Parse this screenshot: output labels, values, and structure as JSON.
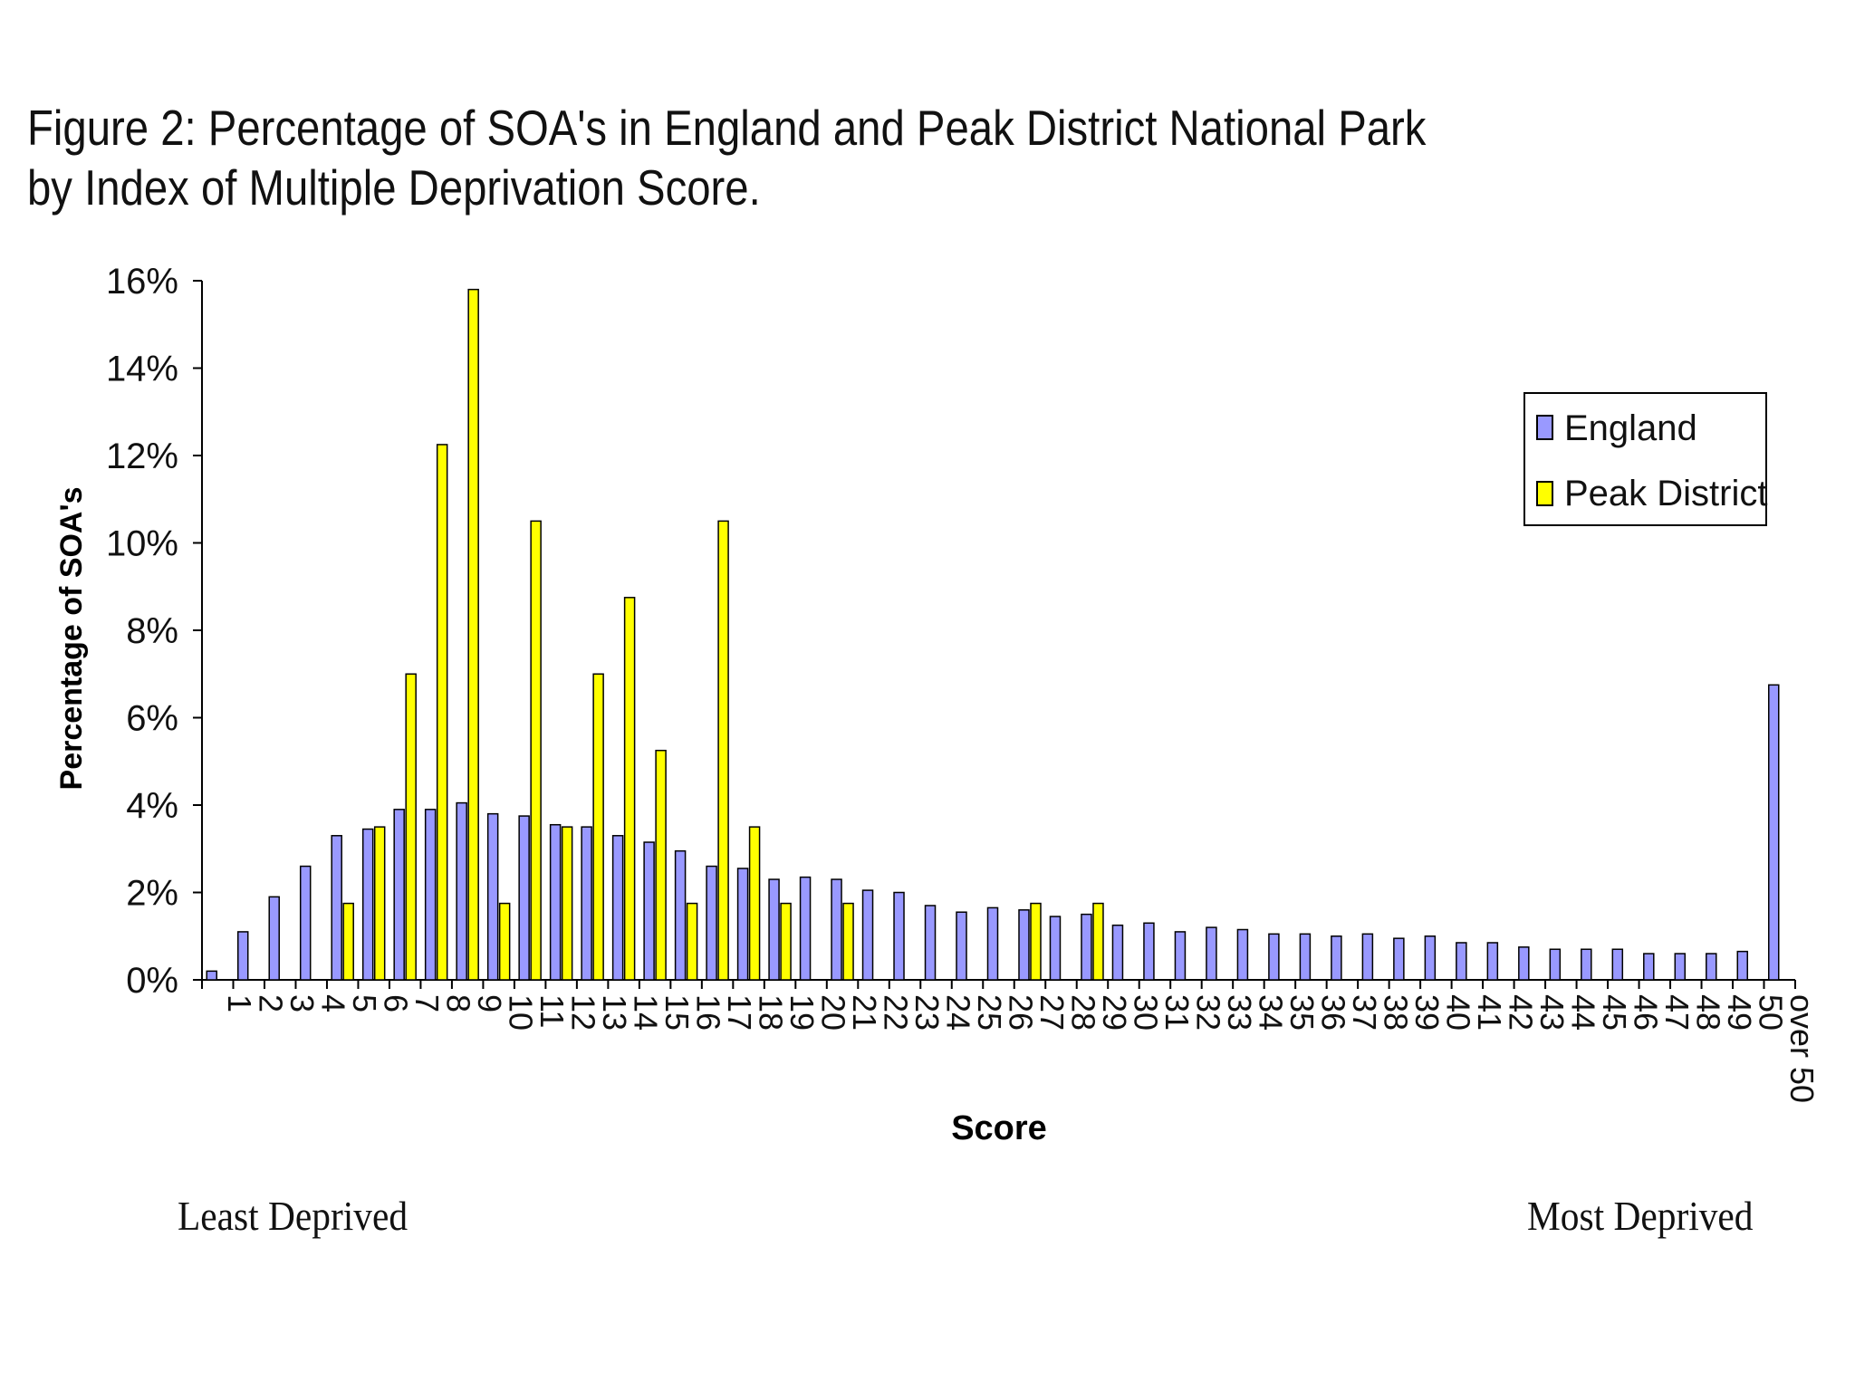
{
  "page": {
    "title": "Figure 2: Percentage of SOA's in England and Peak District National Park by Index of Multiple Deprivation Score.",
    "least_label": "Least Deprived",
    "most_label": "Most Deprived"
  },
  "colors": {
    "england": "#9999ff",
    "peak": "#ffff00"
  },
  "chart_data": {
    "type": "bar",
    "title": "Figure 2: Percentage of SOA's in England and Peak District National Park by Index of Multiple Deprivation Score.",
    "xlabel": "Score",
    "ylabel": "Percentage of SOA's",
    "ylim": [
      0,
      16
    ],
    "yticks": [
      "0%",
      "2%",
      "4%",
      "6%",
      "8%",
      "10%",
      "12%",
      "14%",
      "16%"
    ],
    "legend_position": "top-right",
    "categories": [
      "1",
      "2",
      "3",
      "4",
      "5",
      "6",
      "7",
      "8",
      "9",
      "10",
      "11",
      "12",
      "13",
      "14",
      "15",
      "16",
      "17",
      "18",
      "19",
      "20",
      "21",
      "22",
      "23",
      "24",
      "25",
      "26",
      "27",
      "28",
      "29",
      "30",
      "31",
      "32",
      "33",
      "34",
      "35",
      "36",
      "37",
      "38",
      "39",
      "40",
      "41",
      "42",
      "43",
      "44",
      "45",
      "46",
      "47",
      "48",
      "49",
      "50",
      "over 50"
    ],
    "series": [
      {
        "name": "England",
        "values": [
          0.2,
          1.1,
          1.9,
          2.6,
          3.3,
          3.45,
          3.9,
          3.9,
          4.05,
          3.8,
          3.75,
          3.55,
          3.5,
          3.3,
          3.15,
          2.95,
          2.6,
          2.55,
          2.3,
          2.35,
          2.3,
          2.05,
          2.0,
          1.7,
          1.55,
          1.65,
          1.6,
          1.45,
          1.5,
          1.25,
          1.3,
          1.1,
          1.2,
          1.15,
          1.05,
          1.05,
          1.0,
          1.05,
          0.95,
          1.0,
          0.85,
          0.85,
          0.75,
          0.7,
          0.7,
          0.7,
          0.6,
          0.6,
          0.6,
          0.65,
          6.75
        ]
      },
      {
        "name": "Peak District",
        "values": [
          0,
          0,
          0,
          0,
          1.75,
          3.5,
          7.0,
          12.25,
          15.8,
          1.75,
          10.5,
          3.5,
          7.0,
          8.75,
          5.25,
          1.75,
          10.5,
          3.5,
          1.75,
          0,
          1.75,
          0,
          0,
          0,
          0,
          0,
          1.75,
          0,
          1.75,
          0,
          0,
          0,
          0,
          0,
          0,
          0,
          0,
          0,
          0,
          0,
          0,
          0,
          0,
          0,
          0,
          0,
          0,
          0,
          0,
          0,
          0
        ]
      }
    ]
  }
}
